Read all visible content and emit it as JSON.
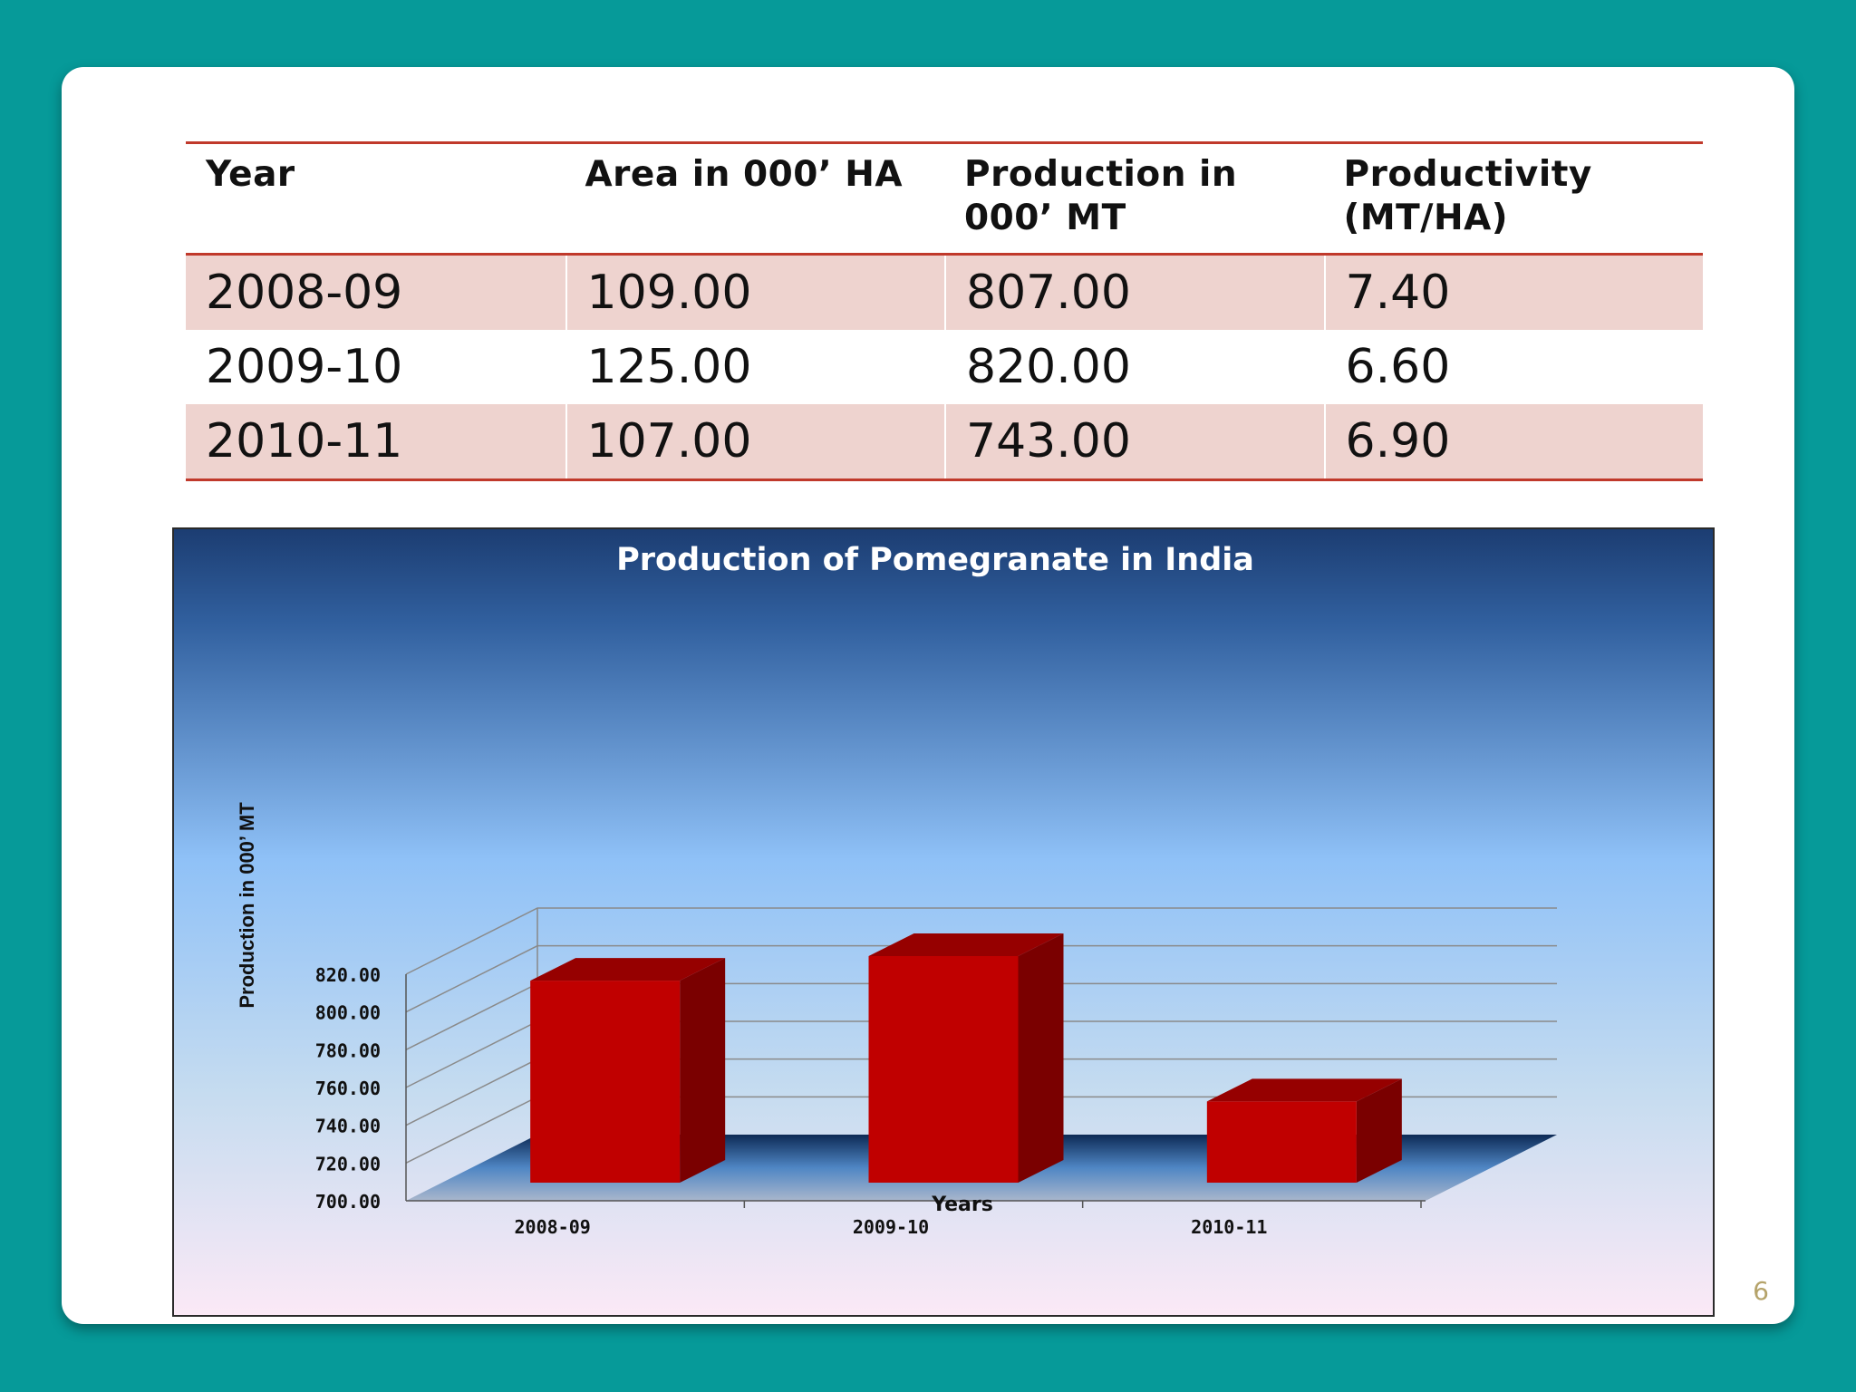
{
  "table": {
    "headers": [
      "Year",
      "Area in 000’ HA",
      "Production in 000’ MT",
      "Productivity (MT/HA)"
    ],
    "rows": [
      [
        "2008-09",
        "109.00",
        "807.00",
        "7.40"
      ],
      [
        "2009-10",
        "125.00",
        "820.00",
        "6.60"
      ],
      [
        "2010-11",
        "107.00",
        "743.00",
        "6.90"
      ]
    ]
  },
  "chart_data": {
    "type": "bar",
    "title": "Production of Pomegranate in India",
    "categories": [
      "2008-09",
      "2009-10",
      "2010-11"
    ],
    "values": [
      807.0,
      820.0,
      743.0
    ],
    "xlabel": "Years",
    "ylabel": "Production in 000’ MT",
    "ylim": [
      700,
      820
    ],
    "yticks": [
      "700.00",
      "720.00",
      "740.00",
      "760.00",
      "780.00",
      "800.00",
      "820.00"
    ],
    "grid": true,
    "style": "3d-column",
    "colors": {
      "bar_front": "#c00000",
      "bar_side": "#7a0000",
      "bar_top": "#960000",
      "background_top": "#1c3d72",
      "background_mid": "#8fc1f7",
      "background_bottom": "#fbe9f6"
    }
  },
  "page_number": "6"
}
